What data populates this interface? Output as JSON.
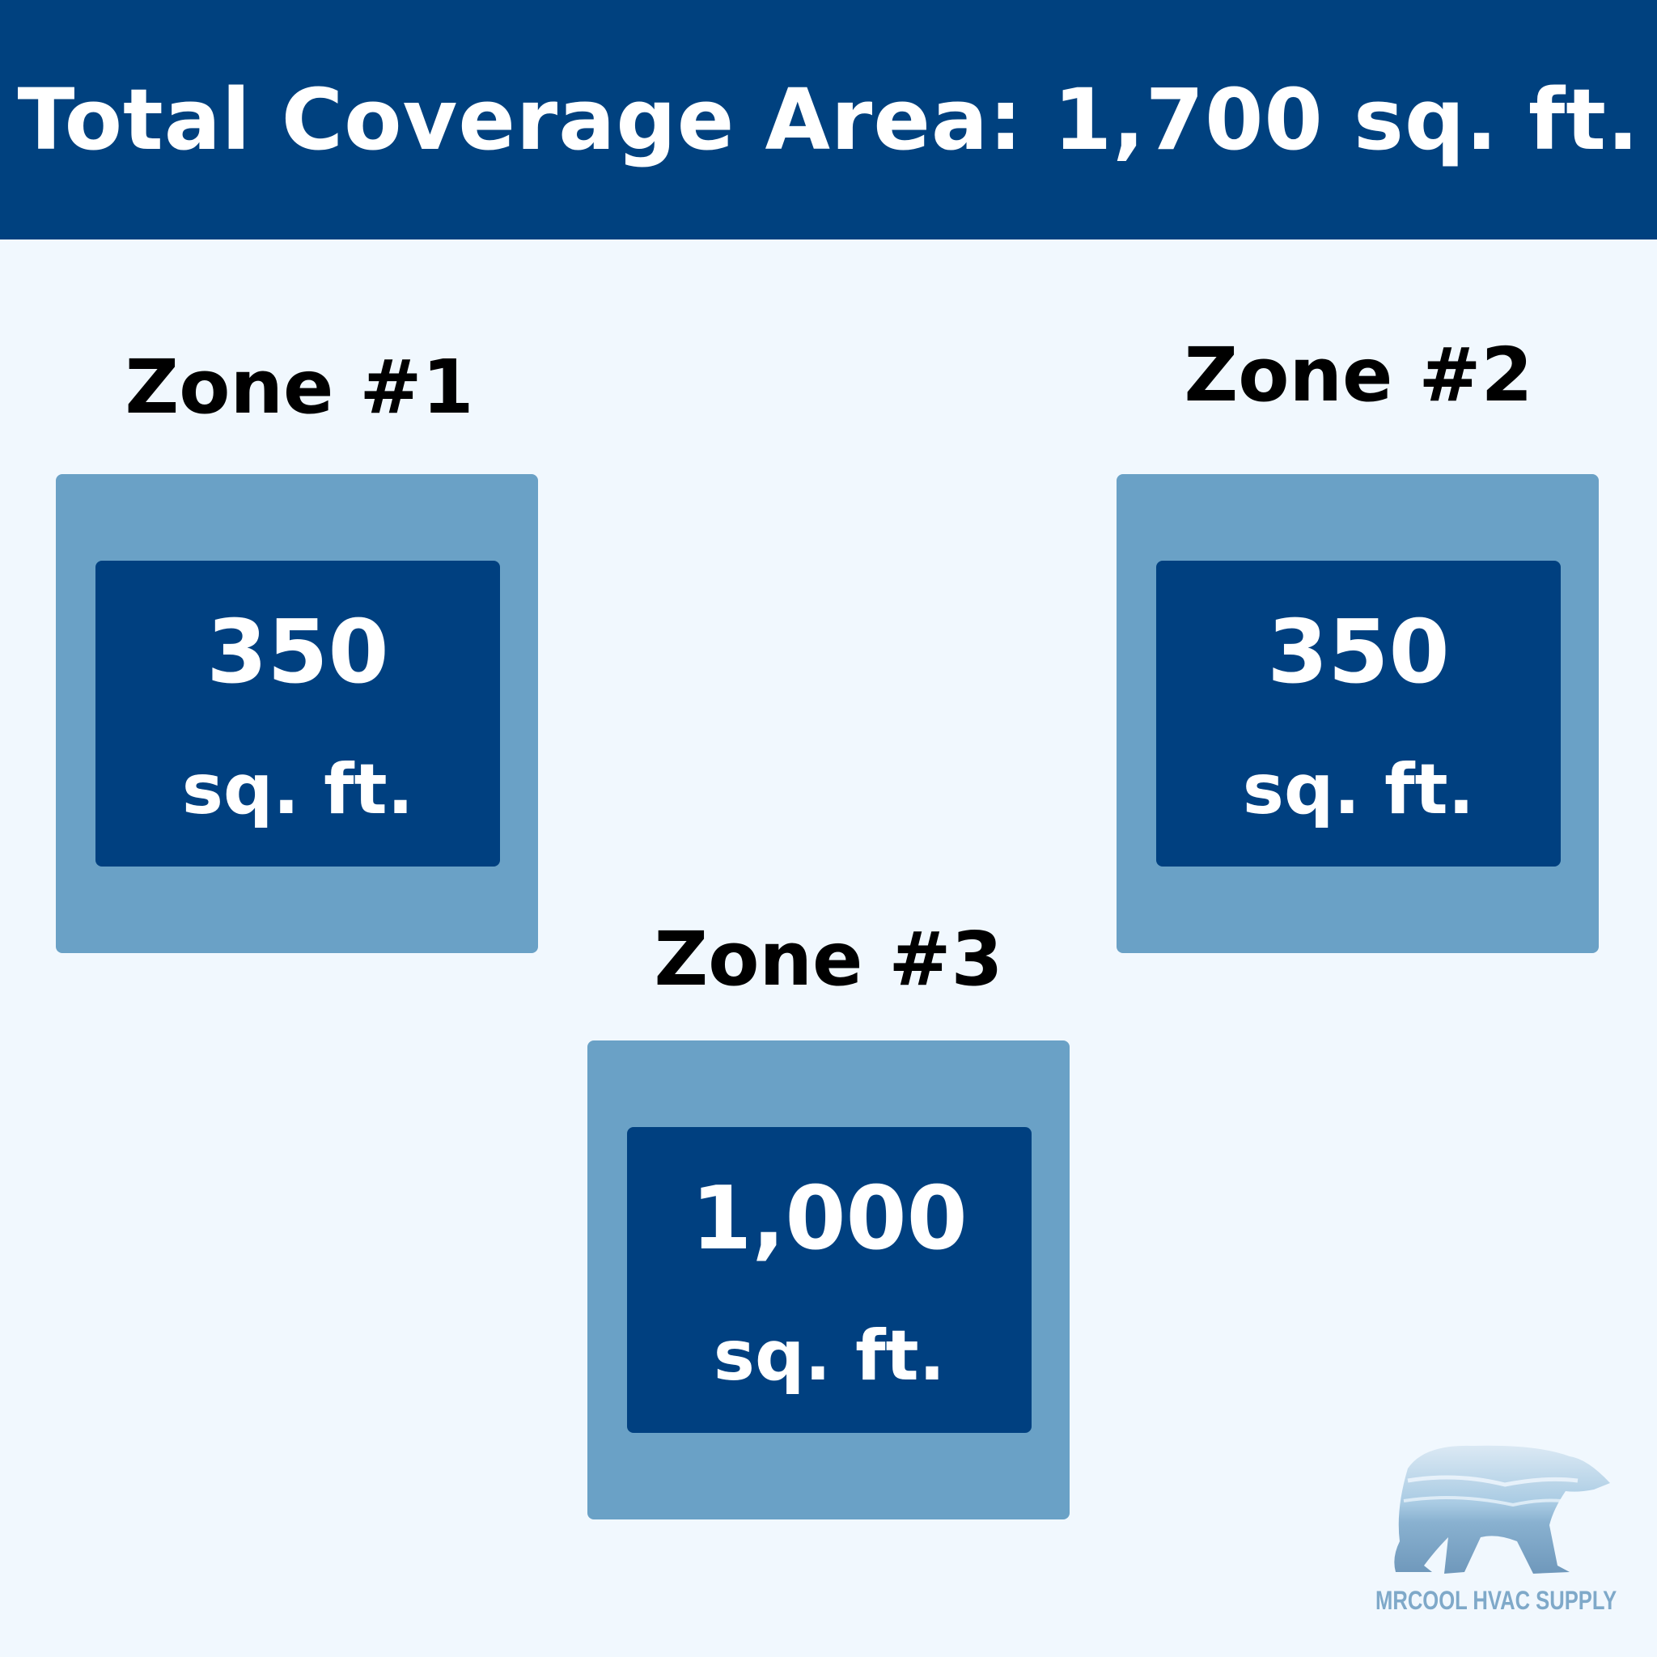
{
  "header": {
    "title": "Total Coverage Area: 1,700 sq. ft."
  },
  "zones": [
    {
      "label": "Zone #1",
      "value": "350",
      "unit": "sq. ft."
    },
    {
      "label": "Zone #2",
      "value": "350",
      "unit": "sq. ft."
    },
    {
      "label": "Zone #3",
      "value": "1,000",
      "unit": "sq. ft."
    }
  ],
  "logo": {
    "text": "MRCOOL HVAC SUPPLY",
    "icon": "polar-bear-icon"
  },
  "colors": {
    "header": "#00417f",
    "background": "#f1f8fe",
    "outer_box": "#6aa1c6",
    "inner_box": "#004080"
  }
}
